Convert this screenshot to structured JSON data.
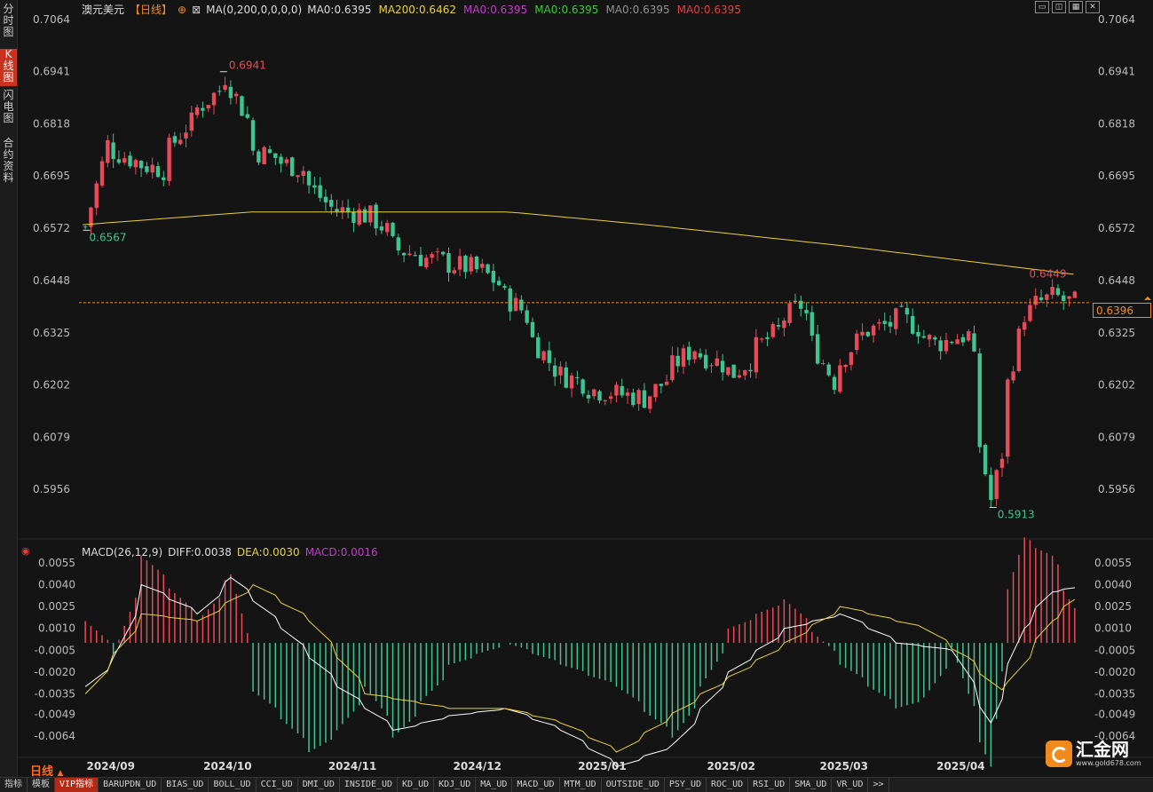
{
  "side_tabs": [
    "分时图",
    "K线图",
    "闪电图",
    "合约资料"
  ],
  "active_tab_index": 1,
  "header": {
    "symbol": "澳元美元",
    "period_tag": "【日线】",
    "ma_params": "MA(0,200,0,0,0,0)",
    "ma_values": [
      {
        "text": "MA0:0.6395",
        "color": "#dddddd"
      },
      {
        "text": "MA200:0.6462",
        "color": "#e6d23a"
      },
      {
        "text": "MA0:0.6395",
        "color": "#c03cc8"
      },
      {
        "text": "MA0:0.6395",
        "color": "#3cc83c"
      },
      {
        "text": "MA0:0.6395",
        "color": "#909090"
      },
      {
        "text": "MA0:0.6395",
        "color": "#e04040"
      }
    ]
  },
  "macd_header": {
    "name": "MACD(26,12,9)",
    "diff": "DIFF:0.0038",
    "dea": "DEA:0.0030",
    "macd": "MACD:0.0016"
  },
  "price_axis": [
    "0.7064",
    "0.6941",
    "0.6818",
    "0.6695",
    "0.6572",
    "0.6448",
    "0.6325",
    "0.6202",
    "0.6079",
    "0.5956"
  ],
  "macd_axis": [
    "0.0055",
    "0.0040",
    "0.0025",
    "0.0010",
    "-0.0005",
    "-0.0020",
    "-0.0035",
    "-0.0049",
    "-0.0064"
  ],
  "date_labels": [
    "2024/09",
    "2024/10",
    "2024/11",
    "2024/12",
    "2025/01",
    "2025/02",
    "2025/03",
    "2025/04"
  ],
  "annotations": {
    "high": "0.6941",
    "low_left": "0.6567",
    "low": "0.5913",
    "ma200_tag": "0.6449"
  },
  "current_price": "0.6396",
  "period_label": "日线",
  "toolbar_icons": [
    "window-icon",
    "split-icon",
    "grid-icon",
    "close-icon"
  ],
  "bottom_tabs": [
    "指标",
    "模板",
    "VIP指标",
    "BARUPDN_UD",
    "BIAS_UD",
    "BOLL_UD",
    "CCI_UD",
    "DMI_UD",
    "INSIDE_UD",
    "KD_UD",
    "KDJ_UD",
    "MA_UD",
    "MACD_UD",
    "MTM_UD",
    "OUTSIDE_UD",
    "PSY_UD",
    "ROC_UD",
    "RSI_UD",
    "SMA_UD",
    "VR_UD",
    ">>"
  ],
  "logo": {
    "name": "汇金网",
    "url": "www.gold678.com"
  },
  "colors": {
    "up": "#e84a5a",
    "down": "#3ec492",
    "ma200": "#e6d23a",
    "diff": "#ffffff",
    "dea": "#e6d23a",
    "macd_label": "#c03cc8",
    "accent": "#f08a1c"
  },
  "chart_data": {
    "type": "candlestick",
    "anchors_price": [
      [
        "2024-08-26",
        0.6575
      ],
      [
        "2024-08-30",
        0.677
      ],
      [
        "2024-09-06",
        0.673
      ],
      [
        "2024-09-13",
        0.671
      ],
      [
        "2024-09-19",
        0.681
      ],
      [
        "2024-09-30",
        0.693
      ],
      [
        "2024-10-07",
        0.6755
      ],
      [
        "2024-10-18",
        0.671
      ],
      [
        "2024-10-25",
        0.662
      ],
      [
        "2024-11-05",
        0.66
      ],
      [
        "2024-11-12",
        0.652
      ],
      [
        "2024-11-19",
        0.65
      ],
      [
        "2024-12-03",
        0.647
      ],
      [
        "2024-12-12",
        0.638
      ],
      [
        "2024-12-20",
        0.624
      ],
      [
        "2024-12-31",
        0.619
      ],
      [
        "2025-01-13",
        0.617
      ],
      [
        "2025-01-24",
        0.629
      ],
      [
        "2025-02-04",
        0.623
      ],
      [
        "2025-02-13",
        0.632
      ],
      [
        "2025-02-20",
        0.639
      ],
      [
        "2025-02-28",
        0.621
      ],
      [
        "2025-03-07",
        0.632
      ],
      [
        "2025-03-18",
        0.636
      ],
      [
        "2025-03-26",
        0.63
      ],
      [
        "2025-04-03",
        0.632
      ],
      [
        "2025-04-09",
        0.593
      ],
      [
        "2025-04-17",
        0.637
      ],
      [
        "2025-04-24",
        0.641
      ],
      [
        "2025-04-30",
        0.6396
      ]
    ],
    "ma200": [
      [
        "2024-08-26",
        0.658
      ],
      [
        "2024-10-07",
        0.661
      ],
      [
        "2024-12-10",
        0.661
      ],
      [
        "2025-01-13",
        0.658
      ],
      [
        "2025-03-03",
        0.653
      ],
      [
        "2025-04-30",
        0.6462
      ]
    ],
    "diff": [
      [
        "2024-08-26",
        -0.003
      ],
      [
        "2024-09-02",
        -0.001
      ],
      [
        "2024-09-09",
        0.004
      ],
      [
        "2024-09-16",
        0.003
      ],
      [
        "2024-09-23",
        0.002
      ],
      [
        "2024-10-01",
        0.0045
      ],
      [
        "2024-10-14",
        0.001
      ],
      [
        "2024-10-28",
        -0.003
      ],
      [
        "2024-11-11",
        -0.006
      ],
      [
        "2024-11-25",
        -0.005
      ],
      [
        "2024-12-09",
        -0.0045
      ],
      [
        "2024-12-23",
        -0.006
      ],
      [
        "2025-01-06",
        -0.0085
      ],
      [
        "2025-01-20",
        -0.007
      ],
      [
        "2025-02-03",
        -0.002
      ],
      [
        "2025-02-17",
        0.001
      ],
      [
        "2025-03-03",
        0.002
      ],
      [
        "2025-03-17",
        0.0
      ],
      [
        "2025-03-31",
        -0.0005
      ],
      [
        "2025-04-09",
        -0.0055
      ],
      [
        "2025-04-17",
        0.001
      ],
      [
        "2025-04-24",
        0.0035
      ],
      [
        "2025-04-30",
        0.0038
      ]
    ],
    "dea": [
      [
        "2024-08-26",
        -0.0035
      ],
      [
        "2024-09-09",
        0.002
      ],
      [
        "2024-09-23",
        0.0015
      ],
      [
        "2024-10-07",
        0.004
      ],
      [
        "2024-10-21",
        0.0015
      ],
      [
        "2024-11-04",
        -0.0035
      ],
      [
        "2024-11-25",
        -0.0045
      ],
      [
        "2024-12-09",
        -0.0045
      ],
      [
        "2024-12-23",
        -0.0055
      ],
      [
        "2025-01-06",
        -0.0075
      ],
      [
        "2025-01-27",
        -0.0035
      ],
      [
        "2025-02-17",
        0.0
      ],
      [
        "2025-03-03",
        0.0025
      ],
      [
        "2025-03-24",
        0.001
      ],
      [
        "2025-04-03",
        -0.001
      ],
      [
        "2025-04-12",
        -0.0035
      ],
      [
        "2025-04-24",
        0.0015
      ],
      [
        "2025-04-30",
        0.003
      ]
    ]
  }
}
